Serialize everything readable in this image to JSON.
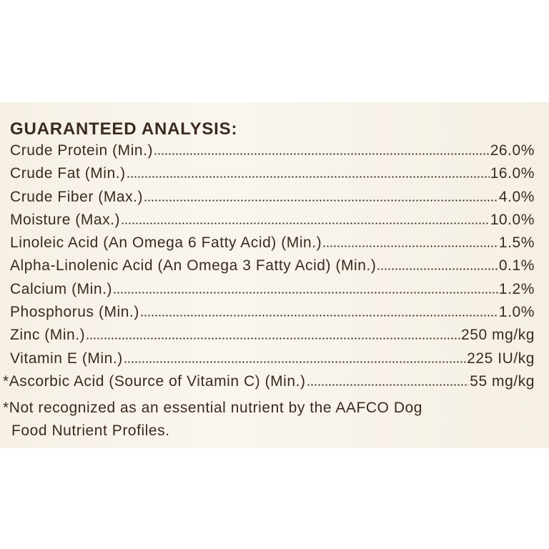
{
  "title": "GUARANTEED ANALYSIS:",
  "rows": [
    {
      "name": "Crude Protein (Min.)",
      "value": "26.0%"
    },
    {
      "name": "Crude Fat (Min.)",
      "value": "16.0%"
    },
    {
      "name": "Crude Fiber (Max.)",
      "value": "4.0%"
    },
    {
      "name": "Moisture (Max.)",
      "value": "10.0%"
    },
    {
      "name": "Linoleic Acid (An Omega 6 Fatty Acid) (Min.)",
      "value": "1.5%"
    },
    {
      "name": "Alpha-Linolenic Acid (An Omega 3 Fatty Acid) (Min.)",
      "value": "0.1%"
    },
    {
      "name": "Calcium (Min.)",
      "value": "1.2%"
    },
    {
      "name": "Phosphorus (Min.)",
      "value": "1.0%"
    },
    {
      "name": "Zinc (Min.)",
      "value": "250 mg/kg"
    },
    {
      "name": "Vitamin E (Min.)",
      "value": "225 IU/kg"
    },
    {
      "name": "*Ascorbic Acid (Source of Vitamin C) (Min.)",
      "value": "55 mg/kg"
    }
  ],
  "footnote": [
    "*Not recognized as an essential nutrient by the AAFCO Dog",
    "Food Nutrient Profiles."
  ]
}
